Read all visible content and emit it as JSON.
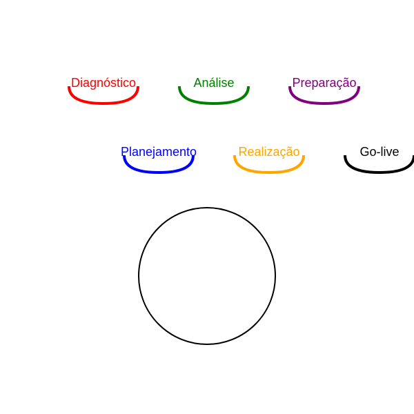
{
  "phases": [
    {
      "label": "Diagnóstico",
      "color": "#ff0000"
    },
    {
      "label": "Análise",
      "color": "#008000"
    },
    {
      "label": "Preparação",
      "color": "#800080"
    },
    {
      "label": "Planejamento",
      "color": "#0000ff"
    },
    {
      "label": "Realização",
      "color": "#ffa500"
    },
    {
      "label": "Go-live",
      "color": "#000000"
    }
  ],
  "center_circle": {
    "stroke": "#000000"
  }
}
